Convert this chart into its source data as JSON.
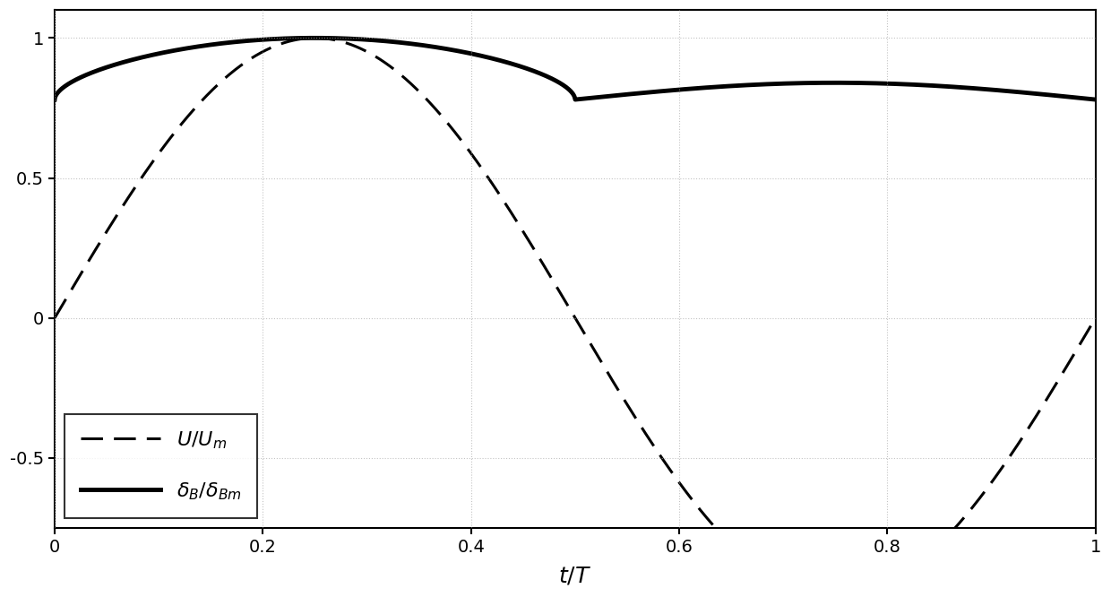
{
  "title": "",
  "xlabel": "$t/T$",
  "ylabel": "",
  "xlim": [
    0,
    1
  ],
  "ylim": [
    -0.75,
    1.1
  ],
  "yticks": [
    -0.5,
    0,
    0.5,
    1
  ],
  "xticks": [
    0,
    0.2,
    0.4,
    0.6,
    0.8,
    1.0
  ],
  "legend_label_1": "$U/U_m$",
  "legend_label_2": "$\\delta_B/\\delta_{Bm}$",
  "bg_color": "#ffffff",
  "line_color": "#000000",
  "grid_color": "#aaaaaa",
  "figsize": [
    12.4,
    6.66
  ],
  "dpi": 100
}
